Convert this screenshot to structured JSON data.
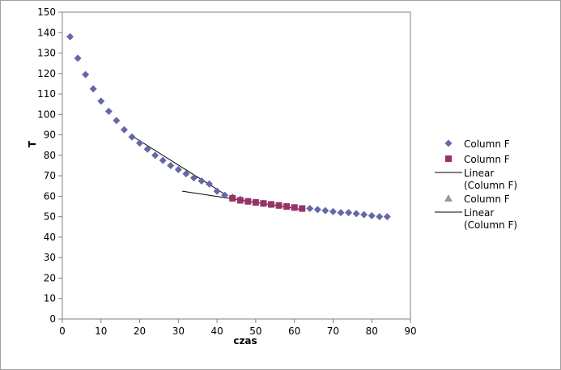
{
  "chart_data": {
    "type": "scatter",
    "xlabel": "czas",
    "ylabel": "T",
    "xlim": [
      0,
      90
    ],
    "ylim": [
      0,
      150
    ],
    "x_ticks": [
      "0",
      "10",
      "20",
      "30",
      "40",
      "50",
      "60",
      "70",
      "80",
      "90"
    ],
    "y_ticks": [
      "0",
      "10",
      "20",
      "30",
      "40",
      "50",
      "60",
      "70",
      "80",
      "90",
      "100",
      "110",
      "120",
      "130",
      "140",
      "150"
    ],
    "grid": false,
    "legend_position": "right",
    "series": [
      {
        "name": "Column F",
        "marker": "diamond",
        "color": "#6667a8",
        "x": [
          2,
          4,
          6,
          8,
          10,
          12,
          14,
          16,
          18,
          20,
          22,
          24,
          26,
          28,
          30,
          32,
          34,
          36,
          38,
          40,
          42,
          44,
          46,
          48,
          50,
          52,
          54,
          56,
          58,
          60,
          62,
          64,
          66,
          68,
          70,
          72,
          74,
          76,
          78,
          80,
          82,
          84
        ],
        "y": [
          138,
          127.5,
          119.5,
          112.5,
          106.5,
          101.5,
          97,
          92.5,
          89,
          86,
          83,
          80,
          77.5,
          75,
          73,
          71,
          69,
          67.5,
          66,
          62.5,
          60.5,
          59.5,
          58.5,
          57.5,
          57,
          56.5,
          56,
          55.5,
          55,
          54.5,
          54,
          54,
          53.5,
          53,
          52.5,
          52,
          52,
          51.5,
          51,
          50.5,
          50,
          50
        ]
      },
      {
        "name": "Column F",
        "marker": "square",
        "color": "#993366",
        "x": [
          44,
          46,
          48,
          50,
          52,
          54,
          56,
          58,
          60,
          62
        ],
        "y": [
          59,
          58,
          57.5,
          57,
          56.5,
          56,
          55.5,
          55,
          54.5,
          54
        ]
      },
      {
        "name": "Linear (Column F)",
        "type": "line",
        "color": "#000000",
        "x": [
          18,
          42
        ],
        "y": [
          89.5,
          61
        ]
      },
      {
        "name": "Column F",
        "marker": "triangle",
        "color": "#999999",
        "x": [],
        "y": []
      },
      {
        "name": "Linear (Column F)",
        "type": "line",
        "color": "#000000",
        "x": [
          31,
          62
        ],
        "y": [
          62.5,
          53.5
        ]
      }
    ],
    "legend": [
      {
        "label": "Column F",
        "marker": "diamond",
        "color": "#6667a8"
      },
      {
        "label": "Column F",
        "marker": "square",
        "color": "#993366"
      },
      {
        "label": "Linear (Column F)",
        "marker": "line",
        "color": "#000000"
      },
      {
        "label": "Column F",
        "marker": "triangle",
        "color": "#999999"
      },
      {
        "label": "Linear (Column F)",
        "marker": "line",
        "color": "#000000"
      }
    ]
  }
}
